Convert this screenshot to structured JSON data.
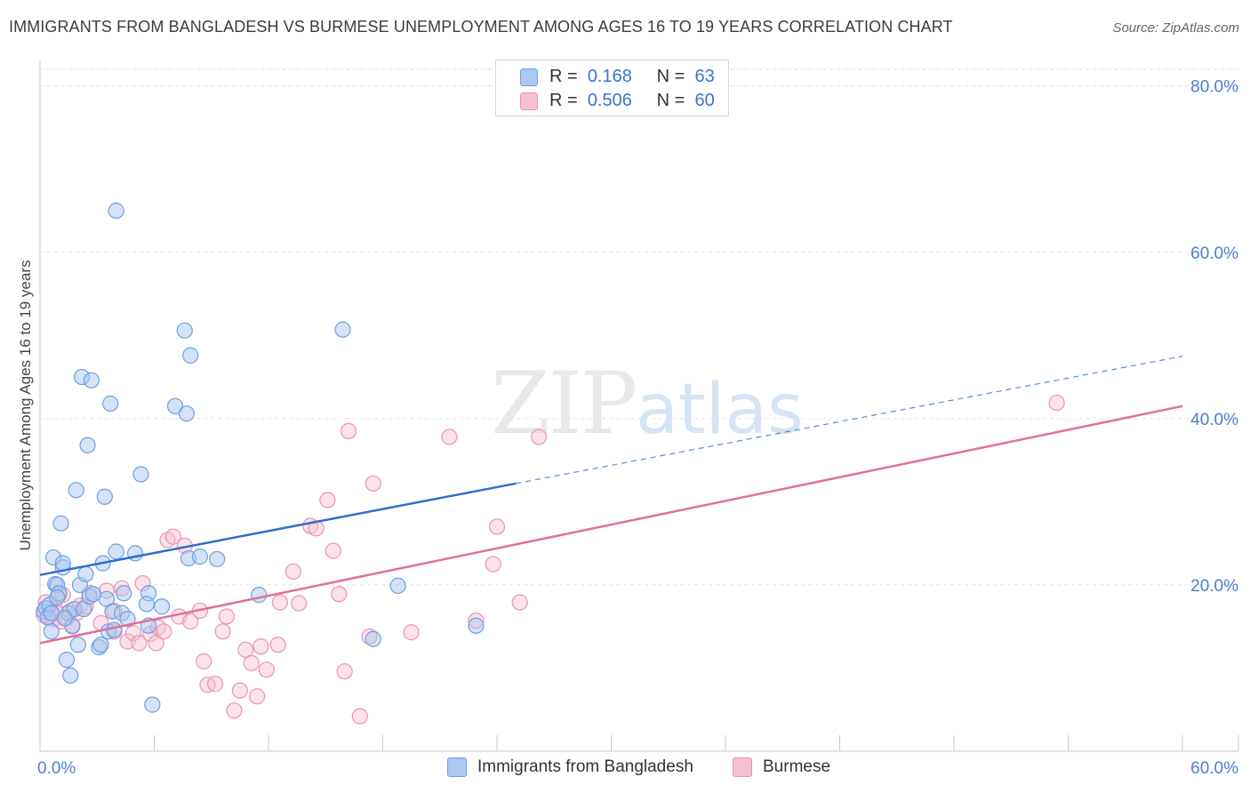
{
  "header": {
    "title": "IMMIGRANTS FROM BANGLADESH VS BURMESE UNEMPLOYMENT AMONG AGES 16 TO 19 YEARS CORRELATION CHART",
    "source": "Source: ZipAtlas.com"
  },
  "watermark": {
    "zip": "ZIP",
    "atlas": "atlas"
  },
  "legend_top": {
    "rows": [
      {
        "r_label": "R =",
        "r_value": "0.168",
        "n_label": "N =",
        "n_value": "63"
      },
      {
        "r_label": "R =",
        "r_value": "0.506",
        "n_label": "N =",
        "n_value": "60"
      }
    ]
  },
  "legend_bottom": {
    "items": [
      "Immigrants from Bangladesh",
      "Burmese"
    ]
  },
  "colors": {
    "blue_fill": "#aac8f0",
    "blue_stroke": "#6f9fe0",
    "blue_line": "#2f6fd0",
    "pink_fill": "#f6bfd2",
    "pink_stroke": "#ec93b2",
    "pink_line": "#e0709a",
    "grid": "#e2e2e2",
    "tick_text": "#4a7fd4"
  },
  "chart_data": {
    "type": "scatter",
    "title": "IMMIGRANTS FROM BANGLADESH VS BURMESE UNEMPLOYMENT AMONG AGES 16 TO 19 YEARS CORRELATION CHART",
    "xlabel": "",
    "ylabel": "Unemployment Among Ages 16 to 19 years",
    "xlim": [
      0,
      60
    ],
    "ylim": [
      0,
      82
    ],
    "x_tick_labels": [
      "0.0%",
      "60.0%"
    ],
    "y_ticks": [
      20,
      40,
      60,
      80
    ],
    "y_tick_labels": [
      "20.0%",
      "40.0%",
      "60.0%",
      "80.0%"
    ],
    "grid": true,
    "legend": "top-center",
    "series": [
      {
        "name": "Immigrants from Bangladesh",
        "r": 0.168,
        "n": 63,
        "trend": {
          "x0": 0,
          "y0": 21.2,
          "x1": 25,
          "y1": 32.2,
          "dashed_to_x": 60,
          "dashed_to_y": 47.5
        },
        "points": [
          [
            0.2,
            16.8
          ],
          [
            0.3,
            17.2
          ],
          [
            0.4,
            16.1
          ],
          [
            0.5,
            17.6
          ],
          [
            0.6,
            16.6
          ],
          [
            0.6,
            14.4
          ],
          [
            0.7,
            23.3
          ],
          [
            0.8,
            20.1
          ],
          [
            0.9,
            20.0
          ],
          [
            1.0,
            19.0
          ],
          [
            1.1,
            27.4
          ],
          [
            1.2,
            22.1
          ],
          [
            1.2,
            22.6
          ],
          [
            1.4,
            11.0
          ],
          [
            1.5,
            16.6
          ],
          [
            1.6,
            9.1
          ],
          [
            1.7,
            15.1
          ],
          [
            1.8,
            17.1
          ],
          [
            1.9,
            31.4
          ],
          [
            2.0,
            12.8
          ],
          [
            2.1,
            20.0
          ],
          [
            2.2,
            45.0
          ],
          [
            2.3,
            17.1
          ],
          [
            2.4,
            21.3
          ],
          [
            2.5,
            36.8
          ],
          [
            2.6,
            18.6
          ],
          [
            2.7,
            44.6
          ],
          [
            3.1,
            12.5
          ],
          [
            3.2,
            12.8
          ],
          [
            3.3,
            22.6
          ],
          [
            3.4,
            30.6
          ],
          [
            3.5,
            18.3
          ],
          [
            3.6,
            14.4
          ],
          [
            3.7,
            41.8
          ],
          [
            3.8,
            16.8
          ],
          [
            4.0,
            24.0
          ],
          [
            4.0,
            65.0
          ],
          [
            4.3,
            16.6
          ],
          [
            4.4,
            19.0
          ],
          [
            4.6,
            15.9
          ],
          [
            5.0,
            23.8
          ],
          [
            5.3,
            33.3
          ],
          [
            5.7,
            19.0
          ],
          [
            5.7,
            15.1
          ],
          [
            5.9,
            5.6
          ],
          [
            6.4,
            17.4
          ],
          [
            7.1,
            41.5
          ],
          [
            7.6,
            50.6
          ],
          [
            7.7,
            40.6
          ],
          [
            7.8,
            23.2
          ],
          [
            7.9,
            47.6
          ],
          [
            8.4,
            23.4
          ],
          [
            9.3,
            23.1
          ],
          [
            11.5,
            18.8
          ],
          [
            15.9,
            50.7
          ],
          [
            17.5,
            13.5
          ],
          [
            18.8,
            19.9
          ],
          [
            22.9,
            15.1
          ],
          [
            1.3,
            16.0
          ],
          [
            2.8,
            18.9
          ],
          [
            0.9,
            18.5
          ],
          [
            5.6,
            17.7
          ],
          [
            3.9,
            14.6
          ]
        ]
      },
      {
        "name": "Burmese",
        "r": 0.506,
        "n": 60,
        "trend": {
          "x0": 0,
          "y0": 13.0,
          "x1": 60,
          "y1": 41.5
        },
        "points": [
          [
            0.2,
            16.4
          ],
          [
            0.3,
            17.9
          ],
          [
            0.4,
            16.2
          ],
          [
            0.6,
            16.8
          ],
          [
            0.7,
            15.9
          ],
          [
            0.8,
            17.2
          ],
          [
            0.9,
            16.6
          ],
          [
            1.0,
            18.8
          ],
          [
            1.1,
            15.6
          ],
          [
            1.2,
            18.8
          ],
          [
            1.4,
            16.0
          ],
          [
            1.6,
            16.9
          ],
          [
            1.7,
            15.0
          ],
          [
            1.9,
            16.6
          ],
          [
            2.1,
            17.5
          ],
          [
            2.4,
            17.4
          ],
          [
            2.6,
            19.0
          ],
          [
            3.2,
            15.4
          ],
          [
            3.5,
            19.3
          ],
          [
            3.9,
            14.4
          ],
          [
            3.9,
            16.9
          ],
          [
            4.3,
            19.6
          ],
          [
            4.6,
            13.2
          ],
          [
            4.9,
            14.2
          ],
          [
            5.2,
            13.0
          ],
          [
            5.4,
            20.2
          ],
          [
            5.8,
            14.1
          ],
          [
            6.1,
            13.0
          ],
          [
            6.2,
            14.9
          ],
          [
            6.5,
            14.4
          ],
          [
            6.7,
            25.4
          ],
          [
            7.0,
            25.8
          ],
          [
            7.3,
            16.2
          ],
          [
            7.6,
            24.7
          ],
          [
            7.9,
            15.6
          ],
          [
            8.4,
            16.9
          ],
          [
            8.6,
            10.8
          ],
          [
            8.8,
            8.0
          ],
          [
            9.2,
            8.1
          ],
          [
            9.6,
            14.4
          ],
          [
            9.8,
            16.2
          ],
          [
            10.2,
            4.9
          ],
          [
            10.5,
            7.3
          ],
          [
            10.8,
            12.2
          ],
          [
            11.1,
            10.6
          ],
          [
            11.4,
            6.6
          ],
          [
            11.6,
            12.6
          ],
          [
            11.9,
            9.8
          ],
          [
            12.5,
            12.8
          ],
          [
            12.6,
            17.9
          ],
          [
            13.3,
            21.6
          ],
          [
            13.6,
            17.8
          ],
          [
            14.2,
            27.1
          ],
          [
            14.5,
            26.8
          ],
          [
            15.1,
            30.2
          ],
          [
            15.4,
            24.1
          ],
          [
            15.7,
            18.9
          ],
          [
            16.0,
            9.6
          ],
          [
            16.2,
            38.5
          ],
          [
            16.8,
            4.2
          ]
        ]
      }
    ],
    "extra_points_burmese": [
      [
        17.3,
        13.8
      ],
      [
        17.5,
        32.2
      ],
      [
        19.5,
        14.3
      ],
      [
        21.5,
        37.8
      ],
      [
        22.9,
        15.7
      ],
      [
        23.8,
        22.5
      ],
      [
        24.0,
        27.0
      ],
      [
        25.2,
        17.9
      ],
      [
        26.2,
        37.8
      ],
      [
        53.4,
        41.9
      ]
    ]
  }
}
